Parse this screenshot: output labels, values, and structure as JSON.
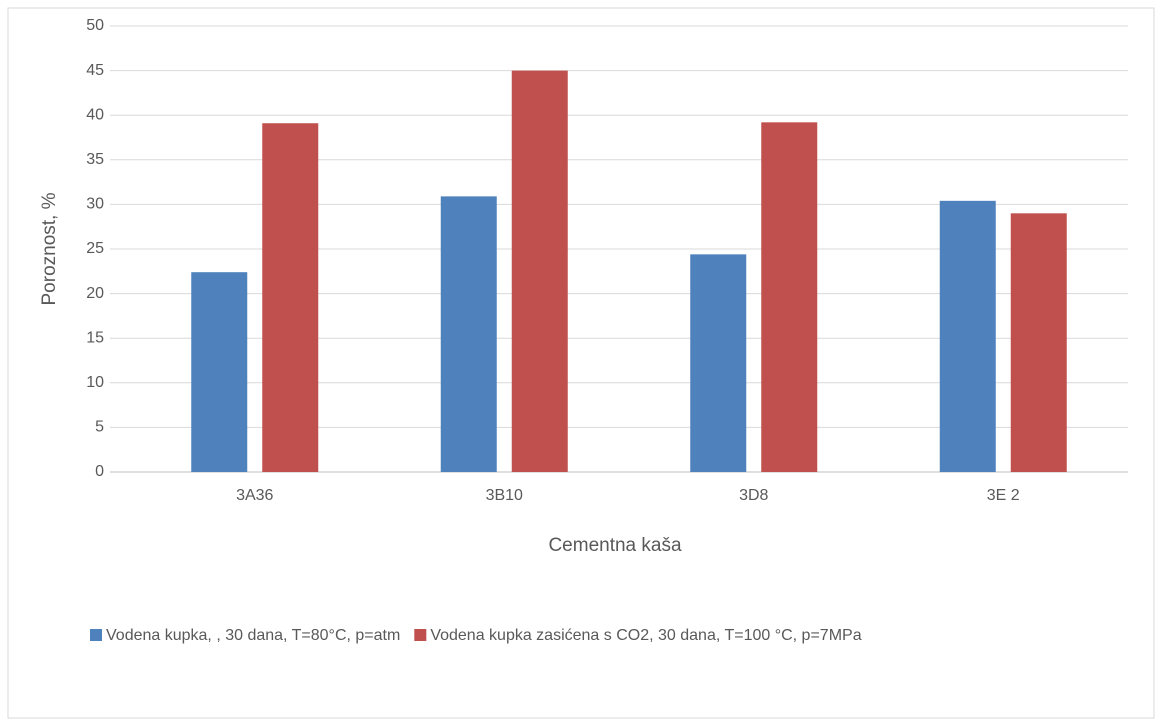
{
  "chart_data": {
    "type": "bar",
    "x_label": "Cementna kaša",
    "y_label": "Poroznost, %",
    "categories": [
      "3A36",
      "3B10",
      "3D8",
      "3E 2"
    ],
    "series": [
      {
        "name": "Vodena kupka, , 30 dana, T=80°C, p=atm",
        "color": "#4f81bd",
        "values": [
          22.4,
          30.9,
          24.4,
          30.4
        ]
      },
      {
        "name": "Vodena kupka zasićena s CO2, 30 dana, T=100 °C, p=7MPa",
        "color": "#c0504d",
        "values": [
          39.1,
          45.0,
          39.2,
          29.0
        ]
      }
    ],
    "ylim": [
      0,
      50
    ],
    "yticks": [
      0,
      5,
      10,
      15,
      20,
      25,
      30,
      35,
      40,
      45,
      50
    ],
    "grid": true,
    "legend": "bottom"
  }
}
